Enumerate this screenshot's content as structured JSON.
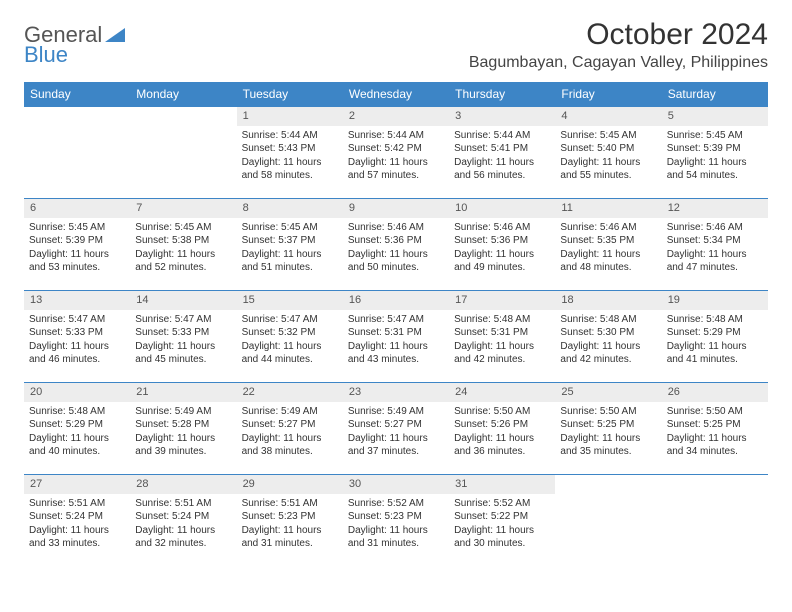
{
  "logo": {
    "text1": "General",
    "text2": "Blue"
  },
  "title": "October 2024",
  "location": "Bagumbayan, Cagayan Valley, Philippines",
  "colors": {
    "accent": "#3d85c6",
    "header_bg": "#3d85c6",
    "daynum_bg": "#ededed"
  },
  "day_headers": [
    "Sunday",
    "Monday",
    "Tuesday",
    "Wednesday",
    "Thursday",
    "Friday",
    "Saturday"
  ],
  "weeks": [
    [
      {
        "empty": true
      },
      {
        "empty": true
      },
      {
        "n": "1",
        "sr": "5:44 AM",
        "ss": "5:43 PM",
        "dl": "11 hours and 58 minutes."
      },
      {
        "n": "2",
        "sr": "5:44 AM",
        "ss": "5:42 PM",
        "dl": "11 hours and 57 minutes."
      },
      {
        "n": "3",
        "sr": "5:44 AM",
        "ss": "5:41 PM",
        "dl": "11 hours and 56 minutes."
      },
      {
        "n": "4",
        "sr": "5:45 AM",
        "ss": "5:40 PM",
        "dl": "11 hours and 55 minutes."
      },
      {
        "n": "5",
        "sr": "5:45 AM",
        "ss": "5:39 PM",
        "dl": "11 hours and 54 minutes."
      }
    ],
    [
      {
        "n": "6",
        "sr": "5:45 AM",
        "ss": "5:39 PM",
        "dl": "11 hours and 53 minutes."
      },
      {
        "n": "7",
        "sr": "5:45 AM",
        "ss": "5:38 PM",
        "dl": "11 hours and 52 minutes."
      },
      {
        "n": "8",
        "sr": "5:45 AM",
        "ss": "5:37 PM",
        "dl": "11 hours and 51 minutes."
      },
      {
        "n": "9",
        "sr": "5:46 AM",
        "ss": "5:36 PM",
        "dl": "11 hours and 50 minutes."
      },
      {
        "n": "10",
        "sr": "5:46 AM",
        "ss": "5:36 PM",
        "dl": "11 hours and 49 minutes."
      },
      {
        "n": "11",
        "sr": "5:46 AM",
        "ss": "5:35 PM",
        "dl": "11 hours and 48 minutes."
      },
      {
        "n": "12",
        "sr": "5:46 AM",
        "ss": "5:34 PM",
        "dl": "11 hours and 47 minutes."
      }
    ],
    [
      {
        "n": "13",
        "sr": "5:47 AM",
        "ss": "5:33 PM",
        "dl": "11 hours and 46 minutes."
      },
      {
        "n": "14",
        "sr": "5:47 AM",
        "ss": "5:33 PM",
        "dl": "11 hours and 45 minutes."
      },
      {
        "n": "15",
        "sr": "5:47 AM",
        "ss": "5:32 PM",
        "dl": "11 hours and 44 minutes."
      },
      {
        "n": "16",
        "sr": "5:47 AM",
        "ss": "5:31 PM",
        "dl": "11 hours and 43 minutes."
      },
      {
        "n": "17",
        "sr": "5:48 AM",
        "ss": "5:31 PM",
        "dl": "11 hours and 42 minutes."
      },
      {
        "n": "18",
        "sr": "5:48 AM",
        "ss": "5:30 PM",
        "dl": "11 hours and 42 minutes."
      },
      {
        "n": "19",
        "sr": "5:48 AM",
        "ss": "5:29 PM",
        "dl": "11 hours and 41 minutes."
      }
    ],
    [
      {
        "n": "20",
        "sr": "5:48 AM",
        "ss": "5:29 PM",
        "dl": "11 hours and 40 minutes."
      },
      {
        "n": "21",
        "sr": "5:49 AM",
        "ss": "5:28 PM",
        "dl": "11 hours and 39 minutes."
      },
      {
        "n": "22",
        "sr": "5:49 AM",
        "ss": "5:27 PM",
        "dl": "11 hours and 38 minutes."
      },
      {
        "n": "23",
        "sr": "5:49 AM",
        "ss": "5:27 PM",
        "dl": "11 hours and 37 minutes."
      },
      {
        "n": "24",
        "sr": "5:50 AM",
        "ss": "5:26 PM",
        "dl": "11 hours and 36 minutes."
      },
      {
        "n": "25",
        "sr": "5:50 AM",
        "ss": "5:25 PM",
        "dl": "11 hours and 35 minutes."
      },
      {
        "n": "26",
        "sr": "5:50 AM",
        "ss": "5:25 PM",
        "dl": "11 hours and 34 minutes."
      }
    ],
    [
      {
        "n": "27",
        "sr": "5:51 AM",
        "ss": "5:24 PM",
        "dl": "11 hours and 33 minutes."
      },
      {
        "n": "28",
        "sr": "5:51 AM",
        "ss": "5:24 PM",
        "dl": "11 hours and 32 minutes."
      },
      {
        "n": "29",
        "sr": "5:51 AM",
        "ss": "5:23 PM",
        "dl": "11 hours and 31 minutes."
      },
      {
        "n": "30",
        "sr": "5:52 AM",
        "ss": "5:23 PM",
        "dl": "11 hours and 31 minutes."
      },
      {
        "n": "31",
        "sr": "5:52 AM",
        "ss": "5:22 PM",
        "dl": "11 hours and 30 minutes."
      },
      {
        "empty": true
      },
      {
        "empty": true
      }
    ]
  ],
  "labels": {
    "sunrise": "Sunrise:",
    "sunset": "Sunset:",
    "daylight": "Daylight:"
  }
}
